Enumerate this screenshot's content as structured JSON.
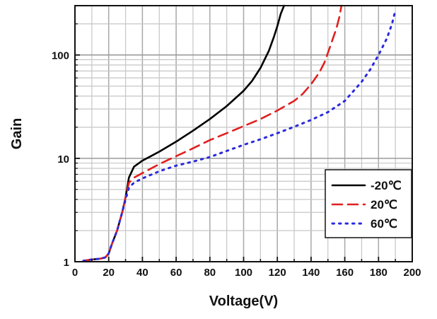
{
  "chart_data": {
    "type": "line",
    "title": "",
    "xlabel": "Voltage(V)",
    "ylabel": "Gain",
    "xlim": [
      0,
      200
    ],
    "ylim": [
      1,
      300
    ],
    "y_scale": "log",
    "grid": true,
    "legend_position": "bottom-right",
    "x_ticks": [
      0,
      20,
      40,
      60,
      80,
      100,
      120,
      140,
      160,
      180,
      200
    ],
    "x_tick_labels": [
      "0",
      "20",
      "40",
      "60",
      "80",
      "100",
      "120",
      "140",
      "160",
      "180",
      "200"
    ],
    "y_ticks": [
      1,
      10,
      100
    ],
    "y_tick_labels": [
      "1",
      "10",
      "100"
    ],
    "series": [
      {
        "name": "-20℃",
        "color": "#000000",
        "style": "solid",
        "x": [
          5,
          10,
          15,
          18,
          20,
          22,
          25,
          28,
          30,
          32,
          35,
          40,
          45,
          50,
          60,
          70,
          80,
          90,
          100,
          105,
          110,
          115,
          118,
          120,
          122,
          124
        ],
        "y": [
          1.02,
          1.05,
          1.07,
          1.1,
          1.2,
          1.5,
          2.0,
          3.0,
          4.2,
          6.5,
          8.3,
          9.5,
          10.5,
          11.6,
          14.5,
          18.5,
          24,
          32,
          45,
          56,
          75,
          110,
          150,
          190,
          250,
          300
        ]
      },
      {
        "name": "20℃",
        "color": "#e02020",
        "style": "dashed",
        "x": [
          5,
          10,
          15,
          18,
          20,
          22,
          25,
          28,
          30,
          32,
          35,
          40,
          50,
          60,
          70,
          80,
          90,
          100,
          110,
          120,
          130,
          135,
          140,
          145,
          148,
          150,
          152,
          155,
          157,
          158
        ],
        "y": [
          1.02,
          1.05,
          1.07,
          1.1,
          1.2,
          1.5,
          2.0,
          3.0,
          4.2,
          5.8,
          6.5,
          7.2,
          8.8,
          10.5,
          12.5,
          15,
          17.5,
          20.5,
          24,
          29,
          36,
          42,
          52,
          68,
          85,
          105,
          130,
          180,
          240,
          300
        ]
      },
      {
        "name": "60℃",
        "color": "#2a2ae0",
        "style": "dotted",
        "x": [
          5,
          10,
          15,
          18,
          20,
          22,
          25,
          28,
          30,
          32,
          35,
          40,
          50,
          60,
          70,
          80,
          90,
          100,
          110,
          120,
          130,
          140,
          150,
          160,
          170,
          175,
          180,
          185,
          188,
          190
        ],
        "y": [
          1.02,
          1.05,
          1.07,
          1.1,
          1.2,
          1.5,
          2.0,
          3.0,
          4.0,
          5.2,
          5.8,
          6.4,
          7.5,
          8.5,
          9.3,
          10.3,
          11.8,
          13.5,
          15.3,
          17.5,
          20.2,
          23.5,
          28,
          36,
          55,
          72,
          100,
          145,
          200,
          270
        ]
      }
    ]
  }
}
